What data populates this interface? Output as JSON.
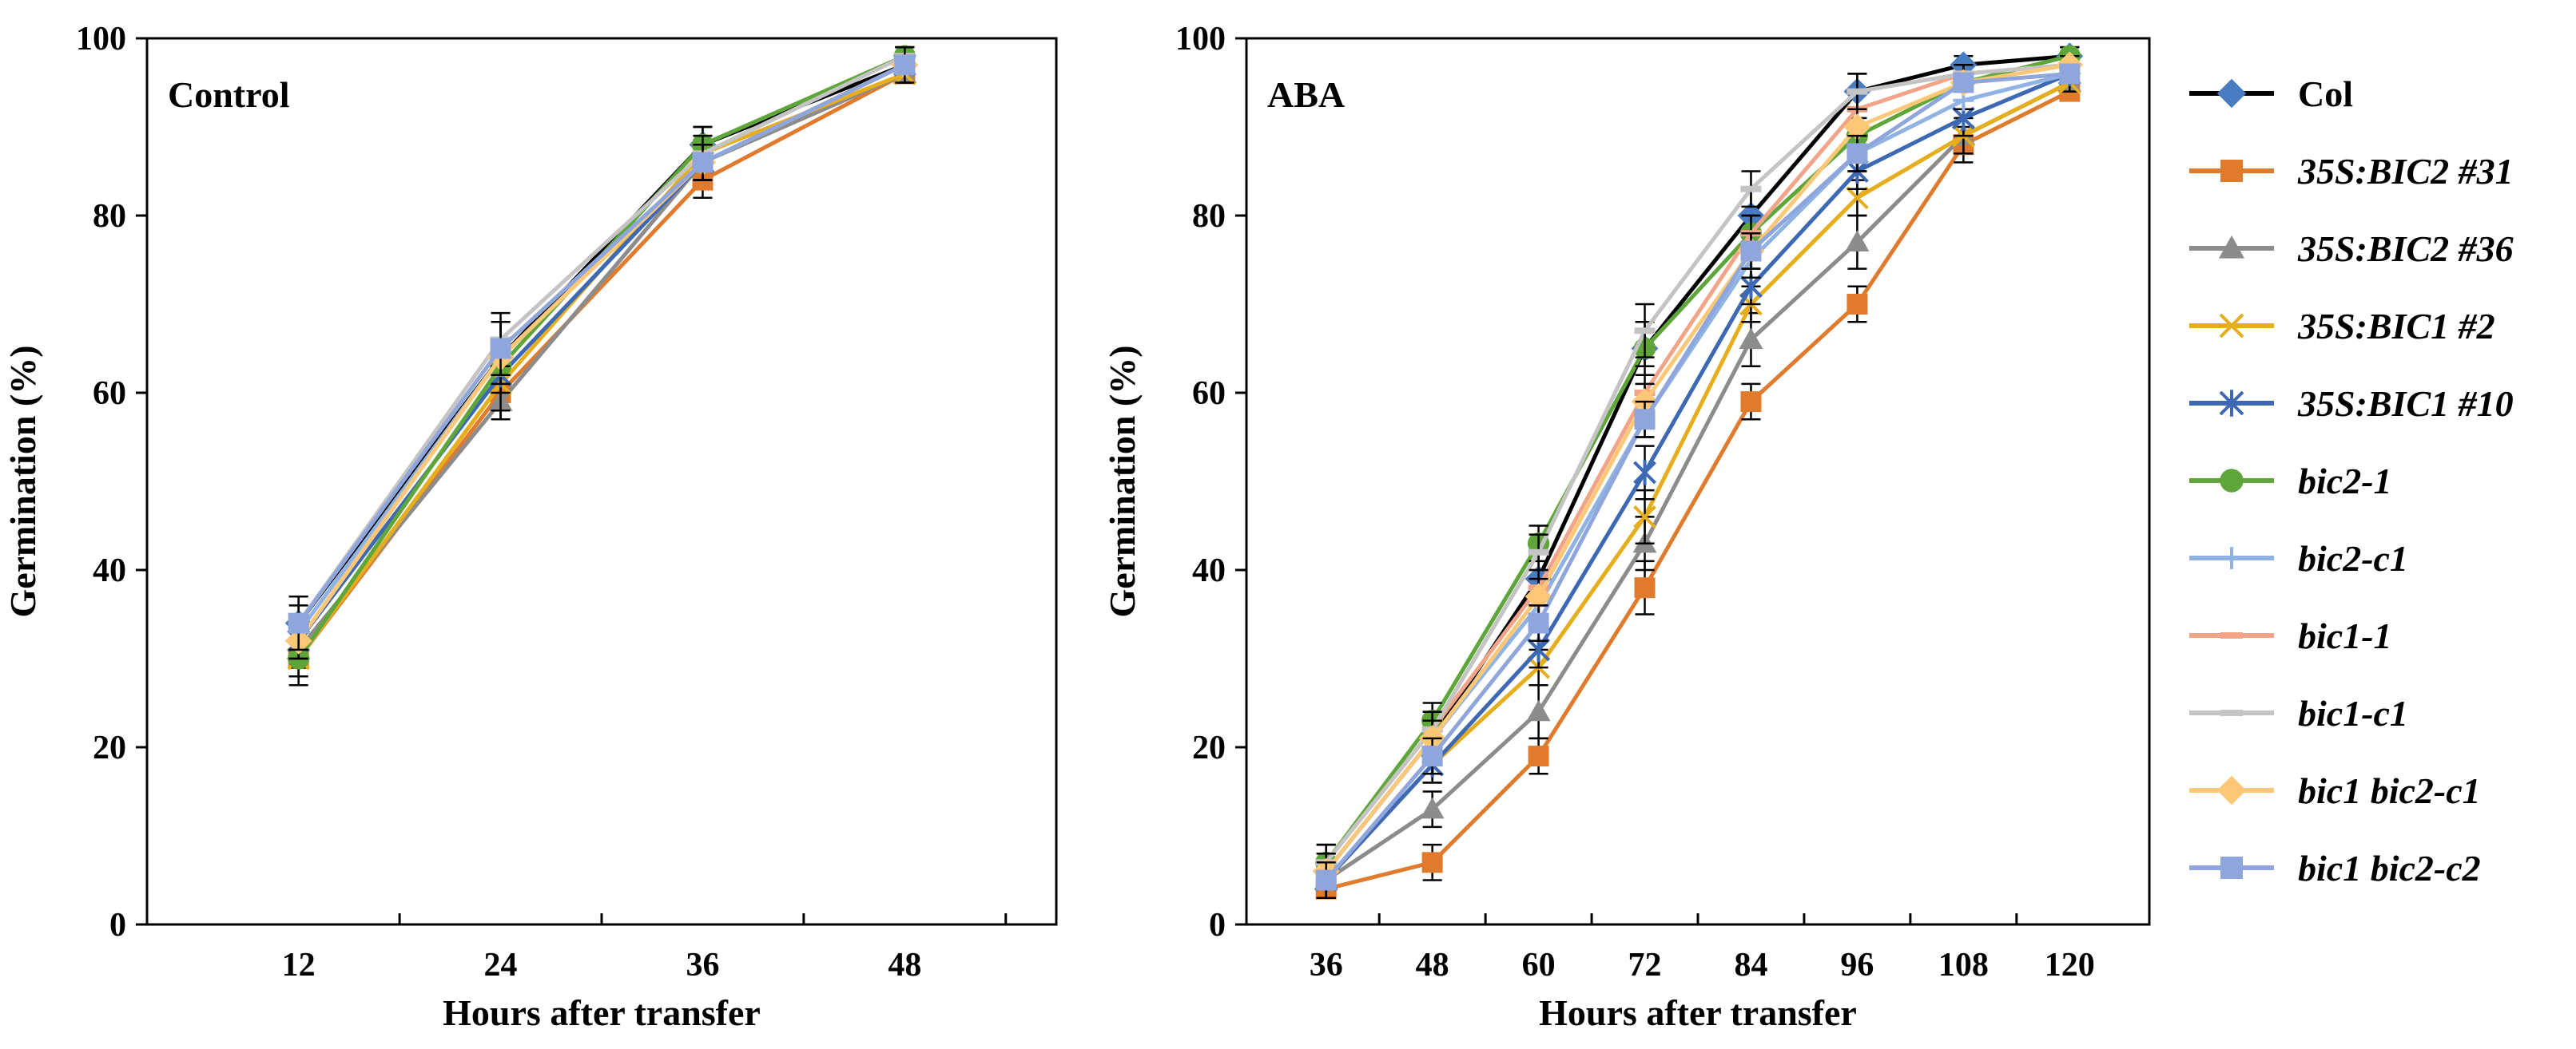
{
  "chart_data": [
    {
      "type": "line",
      "panel_label": "Control",
      "xlabel": "Hours after transfer",
      "ylabel": "Germination (%)",
      "x": [
        12,
        24,
        36,
        48
      ],
      "x_tick_labels": [
        "12",
        "24",
        "36",
        "48"
      ],
      "ylim": [
        0,
        100
      ],
      "y_ticks": [
        "0",
        "20",
        "40",
        "60",
        "80",
        "100"
      ],
      "series": [
        {
          "name": "Col",
          "values": [
            34,
            64,
            88,
            97
          ],
          "errors": [
            3,
            4,
            2,
            2
          ]
        },
        {
          "name": "35S:BIC2 #31",
          "values": [
            30,
            60,
            84,
            96
          ],
          "errors": [
            3,
            3,
            2,
            1
          ]
        },
        {
          "name": "35S:BIC2 #36",
          "values": [
            31,
            59,
            86,
            96
          ],
          "errors": [
            2,
            2,
            2,
            1
          ]
        },
        {
          "name": "35S:BIC1 #2",
          "values": [
            30,
            61,
            87,
            96
          ],
          "errors": [
            2,
            3,
            2,
            1
          ]
        },
        {
          "name": "35S:BIC1 #10",
          "values": [
            32,
            62,
            86,
            97
          ],
          "errors": [
            2,
            2,
            2,
            1
          ]
        },
        {
          "name": "bic2-1",
          "values": [
            30,
            63,
            88,
            98
          ],
          "errors": [
            2,
            2,
            2,
            1
          ]
        },
        {
          "name": "bic2-c1",
          "values": [
            33,
            64,
            86,
            97
          ],
          "errors": [
            2,
            2,
            2,
            1
          ]
        },
        {
          "name": "bic1-1",
          "values": [
            32,
            64,
            86,
            97
          ],
          "errors": [
            2,
            2,
            2,
            1
          ]
        },
        {
          "name": "bic1-c1",
          "values": [
            34,
            66,
            87,
            98
          ],
          "errors": [
            2,
            3,
            2,
            1
          ]
        },
        {
          "name": "bic1 bic2-c1",
          "values": [
            32,
            64,
            86,
            97
          ],
          "errors": [
            2,
            2,
            2,
            1
          ]
        },
        {
          "name": "bic1 bic2-c2",
          "values": [
            34,
            65,
            86,
            97
          ],
          "errors": [
            3,
            3,
            2,
            2
          ]
        }
      ]
    },
    {
      "type": "line",
      "panel_label": "ABA",
      "xlabel": "Hours after transfer",
      "ylabel": "Germination (%)",
      "x": [
        36,
        48,
        60,
        72,
        84,
        96,
        108,
        120
      ],
      "x_tick_labels": [
        "36",
        "48",
        "60",
        "72",
        "84",
        "96",
        "108",
        "120"
      ],
      "ylim": [
        0,
        100
      ],
      "y_ticks": [
        "0",
        "20",
        "40",
        "60",
        "80",
        "100"
      ],
      "series": [
        {
          "name": "Col",
          "values": [
            6,
            21,
            39,
            65,
            80,
            94,
            97,
            98
          ],
          "errors": [
            2,
            2,
            3,
            3,
            3,
            2,
            1,
            1
          ]
        },
        {
          "name": "35S:BIC2 #31",
          "values": [
            4,
            7,
            19,
            38,
            59,
            70,
            88,
            94
          ],
          "errors": [
            1,
            2,
            2,
            3,
            2,
            2,
            2,
            1
          ]
        },
        {
          "name": "35S:BIC2 #36",
          "values": [
            5,
            13,
            24,
            43,
            66,
            77,
            89,
            95
          ],
          "errors": [
            2,
            2,
            3,
            3,
            3,
            3,
            2,
            1
          ]
        },
        {
          "name": "35S:BIC1 #2",
          "values": [
            5,
            18,
            29,
            46,
            70,
            82,
            89,
            95
          ],
          "errors": [
            2,
            2,
            2,
            3,
            2,
            2,
            2,
            1
          ]
        },
        {
          "name": "35S:BIC1 #10",
          "values": [
            5,
            18,
            31,
            51,
            72,
            85,
            91,
            96
          ],
          "errors": [
            2,
            2,
            2,
            3,
            2,
            2,
            2,
            1
          ]
        },
        {
          "name": "bic2-1",
          "values": [
            7,
            23,
            43,
            65,
            78,
            89,
            95,
            98
          ],
          "errors": [
            2,
            2,
            2,
            2,
            2,
            2,
            1,
            1
          ]
        },
        {
          "name": "bic2-c1",
          "values": [
            6,
            21,
            36,
            57,
            75,
            87,
            93,
            96
          ],
          "errors": [
            2,
            2,
            2,
            2,
            2,
            2,
            1,
            1
          ]
        },
        {
          "name": "bic1-1",
          "values": [
            7,
            22,
            38,
            60,
            78,
            92,
            96,
            97
          ],
          "errors": [
            2,
            2,
            2,
            2,
            2,
            2,
            1,
            1
          ]
        },
        {
          "name": "bic1-c1",
          "values": [
            7,
            22,
            42,
            67,
            83,
            94,
            96,
            97
          ],
          "errors": [
            2,
            2,
            2,
            3,
            2,
            2,
            1,
            1
          ]
        },
        {
          "name": "bic1 bic2-c1",
          "values": [
            6,
            21,
            37,
            59,
            76,
            90,
            95,
            97
          ],
          "errors": [
            2,
            2,
            2,
            2,
            2,
            2,
            1,
            1
          ]
        },
        {
          "name": "bic1 bic2-c2",
          "values": [
            5,
            19,
            34,
            57,
            76,
            87,
            95,
            96
          ],
          "errors": [
            2,
            2,
            2,
            2,
            2,
            2,
            1,
            1
          ]
        }
      ]
    }
  ],
  "legend": {
    "placement": "right",
    "entries": [
      {
        "label": "Col",
        "italic": false,
        "color": "#000000",
        "marker_color": "#4a7cc2",
        "marker": "diamond"
      },
      {
        "label": "35S:BIC2 #31",
        "italic": true,
        "color": "#e07b2e",
        "marker_color": "#e07b2e",
        "marker": "square"
      },
      {
        "label": "35S:BIC2 #36",
        "italic": true,
        "color": "#8c8c8c",
        "marker_color": "#8c8c8c",
        "marker": "triangle"
      },
      {
        "label": "35S:BIC1 #2",
        "italic": true,
        "color": "#e6ae1c",
        "marker_color": "#e6ae1c",
        "marker": "x"
      },
      {
        "label": "35S:BIC1 #10",
        "italic": true,
        "color": "#3c68b4",
        "marker_color": "#3c68b4",
        "marker": "star"
      },
      {
        "label": "bic2-1",
        "italic": true,
        "color": "#5ea63a",
        "marker_color": "#5ea63a",
        "marker": "circle"
      },
      {
        "label": "bic2-c1",
        "italic": true,
        "color": "#8fb4e4",
        "marker_color": "#8fb4e4",
        "marker": "plus"
      },
      {
        "label": "bic1-1",
        "italic": true,
        "color": "#f2a488",
        "marker_color": "#f2a488",
        "marker": "dash"
      },
      {
        "label": "bic1-c1",
        "italic": true,
        "color": "#c4c4c4",
        "marker_color": "#c4c4c4",
        "marker": "dash"
      },
      {
        "label": "bic1 bic2-c1",
        "italic": true,
        "color": "#fcc878",
        "marker_color": "#fcc878",
        "marker": "diamond"
      },
      {
        "label": "bic1 bic2-c2",
        "italic": true,
        "color": "#8fa6dc",
        "marker_color": "#8fa6dc",
        "marker": "square"
      }
    ]
  }
}
